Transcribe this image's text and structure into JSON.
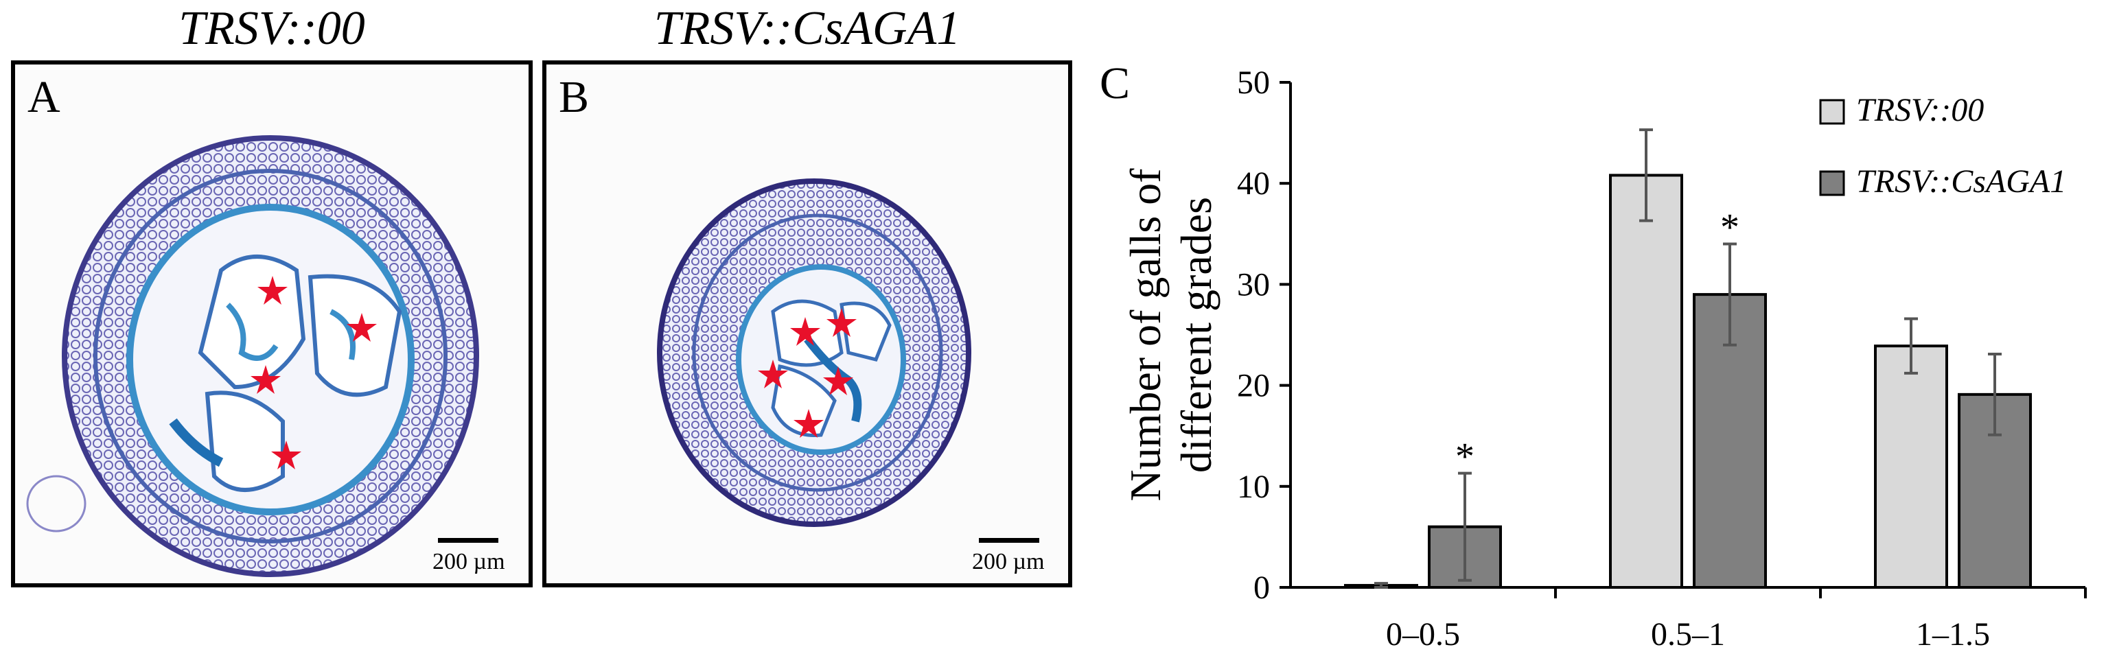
{
  "panel_a": {
    "title": "TRSV::00",
    "letter": "A",
    "scale_label": "200 µm"
  },
  "panel_b": {
    "title": "TRSV::CsAGA1",
    "letter": "B",
    "scale_label": "200 µm"
  },
  "panel_c": {
    "letter": "C"
  },
  "colors": {
    "series_light": "#d9d9d9",
    "series_dark": "#808080",
    "star": "#e8102a",
    "tissue_blue": "#3a8fc9",
    "tissue_purple": "#7a6fb8"
  },
  "chart_data": {
    "type": "bar",
    "categories": [
      "0–0.5",
      "0.5–1",
      "1–1.5"
    ],
    "series": [
      {
        "name": "TRSV::00",
        "values": [
          0.2,
          40.8,
          23.9
        ],
        "errors": [
          0.2,
          4.5,
          2.7
        ],
        "significant": [
          false,
          false,
          false
        ]
      },
      {
        "name": "TRSV::CsAGA1",
        "values": [
          6.0,
          29.0,
          19.1
        ],
        "errors": [
          5.3,
          5.0,
          4.0
        ],
        "significant": [
          true,
          true,
          false
        ]
      }
    ],
    "ylabel": "Number of galls of different grades",
    "ylabel_lines": [
      "Number of galls of",
      "different grades"
    ],
    "ylim": [
      0,
      50
    ],
    "yticks": [
      0,
      10,
      20,
      30,
      40,
      50
    ],
    "significance_marker": "*",
    "legend": "top-right",
    "grid": false
  }
}
